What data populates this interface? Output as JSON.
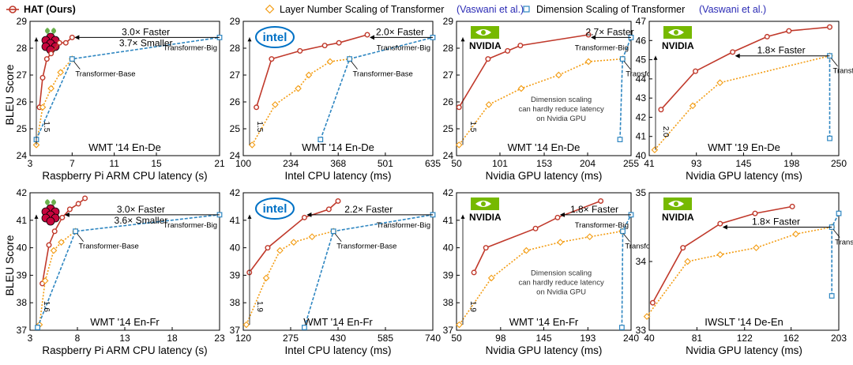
{
  "legend": {
    "hat": "HAT (Ours)",
    "layer": "Layer Number Scaling of Transformer",
    "dim": "Dimension Scaling of Transformer",
    "cite": "(Vaswani et al.)",
    "colors": {
      "hat": "#c0392b",
      "layer": "#f39c12",
      "dim": "#2e86c1",
      "cite": "#2b2bb5"
    }
  },
  "ylabel": "BLEU Score",
  "chart_data": [
    {
      "type": "line",
      "title": "WMT '14 En-De",
      "xlabel": "Raspberry Pi ARM CPU latency (s)",
      "xticks": [
        3,
        7,
        11,
        15,
        21
      ],
      "yticks": [
        24,
        25,
        26,
        27,
        28,
        29
      ],
      "xlim": [
        3,
        21
      ],
      "ylim": [
        24,
        29
      ],
      "logo": "raspberry-pi",
      "series": [
        {
          "name": "HAT (Ours)",
          "x": [
            3.9,
            4.2,
            4.6,
            5.0,
            5.8,
            6.4,
            7.0
          ],
          "y": [
            25.8,
            26.9,
            27.6,
            27.8,
            28.2,
            28.2,
            28.4
          ]
        },
        {
          "name": "Layer Number Scaling of Transformer",
          "x": [
            3.6,
            4.2,
            5.0,
            5.9,
            7.0
          ],
          "y": [
            24.4,
            25.8,
            26.5,
            27.1,
            27.6
          ]
        },
        {
          "name": "Dimension Scaling of Transformer",
          "x": [
            3.6,
            7.0,
            21.0
          ],
          "y": [
            24.6,
            27.6,
            28.4
          ]
        }
      ],
      "labels": [
        "Transformer-Base",
        "Transformer-Big"
      ],
      "speedup": [
        "3.0× Faster",
        "3.7× Smaller"
      ],
      "bracket": "1.5"
    },
    {
      "type": "line",
      "title": "WMT '14 En-De",
      "xlabel": "Intel CPU latency (ms)",
      "xticks": [
        100,
        234,
        368,
        501,
        635
      ],
      "yticks": [
        24,
        25,
        26,
        27,
        28,
        29
      ],
      "xlim": [
        100,
        635
      ],
      "ylim": [
        24,
        29
      ],
      "logo": "intel",
      "series": [
        {
          "name": "HAT (Ours)",
          "x": [
            137,
            180,
            260,
            330,
            370,
            450
          ],
          "y": [
            25.8,
            27.6,
            27.9,
            28.1,
            28.2,
            28.5
          ]
        },
        {
          "name": "Layer Number Scaling of Transformer",
          "x": [
            125,
            190,
            255,
            285,
            345,
            400
          ],
          "y": [
            24.4,
            25.9,
            26.5,
            27.0,
            27.5,
            27.6
          ]
        },
        {
          "name": "Dimension Scaling of Transformer",
          "x": [
            318,
            400,
            635
          ],
          "y": [
            24.6,
            27.6,
            28.4
          ]
        }
      ],
      "labels": [
        "Transformer-Base",
        "Transformer-Big"
      ],
      "speedup": [
        "2.0× Faster"
      ],
      "bracket": "1.5"
    },
    {
      "type": "line",
      "title": "WMT '14 En-De",
      "xlabel": "Nvidia GPU latency (ms)",
      "xticks": [
        50,
        101,
        153,
        204,
        255
      ],
      "yticks": [
        24,
        25,
        26,
        27,
        28,
        29
      ],
      "xlim": [
        50,
        255
      ],
      "ylim": [
        24,
        29
      ],
      "logo": "nvidia",
      "series": [
        {
          "name": "HAT (Ours)",
          "x": [
            53,
            87,
            110,
            125,
            205
          ],
          "y": [
            25.8,
            27.6,
            27.9,
            28.1,
            28.5
          ]
        },
        {
          "name": "Layer Number Scaling of Transformer",
          "x": [
            53,
            88,
            126,
            170,
            205,
            245
          ],
          "y": [
            24.4,
            25.9,
            26.5,
            27.0,
            27.5,
            27.6
          ]
        },
        {
          "name": "Dimension Scaling of Transformer",
          "x": [
            242,
            245,
            255
          ],
          "y": [
            24.6,
            27.6,
            28.4
          ]
        }
      ],
      "labels": [
        "Transformer-Base",
        "Transformer-Big"
      ],
      "speedup": [
        "2.7× Faster"
      ],
      "bracket": "1.5",
      "note": [
        "Dimension scaling",
        "can hardly reduce latency",
        "on Nvidia GPU"
      ]
    },
    {
      "type": "line",
      "title": "WMT '19 En-De",
      "xlabel": "Nvidia GPU latency (ms)",
      "xticks": [
        41,
        93,
        145,
        198,
        250
      ],
      "yticks": [
        40,
        41,
        42,
        43,
        44,
        45,
        46,
        47
      ],
      "xlim": [
        41,
        250
      ],
      "ylim": [
        40,
        47
      ],
      "logo": "nvidia",
      "series": [
        {
          "name": "HAT (Ours)",
          "x": [
            54,
            92,
            133,
            171,
            195,
            240
          ],
          "y": [
            42.4,
            44.4,
            45.4,
            46.2,
            46.5,
            46.7
          ]
        },
        {
          "name": "Layer Number Scaling of Transformer",
          "x": [
            47,
            89,
            119,
            240
          ],
          "y": [
            40.3,
            42.6,
            43.8,
            45.2
          ]
        },
        {
          "name": "Dimension Scaling of Transformer",
          "x": [
            240,
            240
          ],
          "y": [
            40.9,
            45.2
          ]
        }
      ],
      "labels": [
        "Transformer-Base"
      ],
      "speedup": [
        "1.8× Faster"
      ],
      "bracket": "2.0"
    },
    {
      "type": "line",
      "title": "WMT '14 En-Fr",
      "xlabel": "Raspberry Pi ARM CPU latency (s)",
      "xticks": [
        3,
        8,
        13,
        18,
        23
      ],
      "yticks": [
        37,
        38,
        39,
        40,
        41,
        42
      ],
      "xlim": [
        3,
        23
      ],
      "ylim": [
        37,
        42
      ],
      "logo": "raspberry-pi",
      "series": [
        {
          "name": "HAT (Ours)",
          "x": [
            4.3,
            5.0,
            5.6,
            6.4,
            7.2,
            8.1,
            8.8
          ],
          "y": [
            38.7,
            40.1,
            40.6,
            41.1,
            41.4,
            41.6,
            41.8
          ]
        },
        {
          "name": "Layer Number Scaling of Transformer",
          "x": [
            4.0,
            4.6,
            5.5,
            6.3,
            7.8
          ],
          "y": [
            37.2,
            38.8,
            39.9,
            40.2,
            40.6
          ]
        },
        {
          "name": "Dimension Scaling of Transformer",
          "x": [
            3.8,
            7.8,
            23.0
          ],
          "y": [
            37.1,
            40.6,
            41.2
          ]
        }
      ],
      "labels": [
        "Transformer-Base",
        "Transformer-Big"
      ],
      "speedup": [
        "3.0× Faster",
        "3.6× Smaller"
      ],
      "bracket": "1.6"
    },
    {
      "type": "line",
      "title": "WMT '14 En-Fr",
      "xlabel": "Intel CPU latency (ms)",
      "xticks": [
        120,
        275,
        430,
        585,
        740
      ],
      "yticks": [
        37,
        38,
        39,
        40,
        41,
        42
      ],
      "xlim": [
        120,
        740
      ],
      "ylim": [
        37,
        42
      ],
      "logo": "intel",
      "series": [
        {
          "name": "HAT (Ours)",
          "x": [
            140,
            200,
            320,
            400,
            430
          ],
          "y": [
            39.1,
            40.0,
            41.1,
            41.4,
            41.7
          ]
        },
        {
          "name": "Layer Number Scaling of Transformer",
          "x": [
            130,
            195,
            240,
            285,
            345,
            415
          ],
          "y": [
            37.2,
            38.9,
            39.9,
            40.2,
            40.4,
            40.6
          ]
        },
        {
          "name": "Dimension Scaling of Transformer",
          "x": [
            320,
            415,
            740
          ],
          "y": [
            37.1,
            40.6,
            41.2
          ]
        }
      ],
      "labels": [
        "Transformer-Base",
        "Transformer-Big"
      ],
      "speedup": [
        "2.2× Faster"
      ],
      "bracket": "1.9"
    },
    {
      "type": "line",
      "title": "WMT '14 En-Fr",
      "xlabel": "Nvidia GPU latency (ms)",
      "xticks": [
        50,
        98,
        145,
        193,
        240
      ],
      "yticks": [
        37,
        38,
        39,
        40,
        41,
        42
      ],
      "xlim": [
        50,
        240
      ],
      "ylim": [
        37,
        42
      ],
      "logo": "nvidia",
      "series": [
        {
          "name": "HAT (Ours)",
          "x": [
            69,
            82,
            136,
            160,
            207
          ],
          "y": [
            39.1,
            40.0,
            40.7,
            41.1,
            41.7
          ]
        },
        {
          "name": "Layer Number Scaling of Transformer",
          "x": [
            53,
            88,
            126,
            163,
            195,
            230
          ],
          "y": [
            37.2,
            38.9,
            39.9,
            40.2,
            40.4,
            40.6
          ]
        },
        {
          "name": "Dimension Scaling of Transformer",
          "x": [
            230,
            231,
            240
          ],
          "y": [
            37.1,
            40.6,
            41.2
          ]
        }
      ],
      "labels": [
        "Transformer-Base",
        "Transformer-Big"
      ],
      "speedup": [
        "1.8× Faster"
      ],
      "bracket": "1.9",
      "note": [
        "Dimension scaling",
        "can hardly reduce latency",
        "on Nvidia GPU"
      ]
    },
    {
      "type": "line",
      "title": "IWSLT '14 De-En",
      "xlabel": "Nvidia GPU latency (ms)",
      "xticks": [
        40,
        81,
        122,
        162,
        203
      ],
      "yticks": [
        33,
        34,
        35
      ],
      "xlim": [
        40,
        203
      ],
      "ylim": [
        33,
        35
      ],
      "logo": "nvidia",
      "series": [
        {
          "name": "HAT (Ours)",
          "x": [
            43,
            69,
            101,
            131,
            163
          ],
          "y": [
            33.4,
            34.2,
            34.55,
            34.7,
            34.8
          ],
          "marker": "circle"
        },
        {
          "name": "Layer Number Scaling of Transformer",
          "x": [
            38,
            73,
            101,
            132,
            166,
            197
          ],
          "y": [
            33.2,
            34.0,
            34.1,
            34.2,
            34.4,
            34.5
          ]
        },
        {
          "name": "Dimension Scaling of Transformer",
          "x": [
            197,
            197,
            203
          ],
          "y": [
            33.5,
            34.5,
            34.7
          ]
        }
      ],
      "labels": [
        "Transformer-Base"
      ],
      "speedup": [
        "1.8× Faster"
      ]
    }
  ]
}
